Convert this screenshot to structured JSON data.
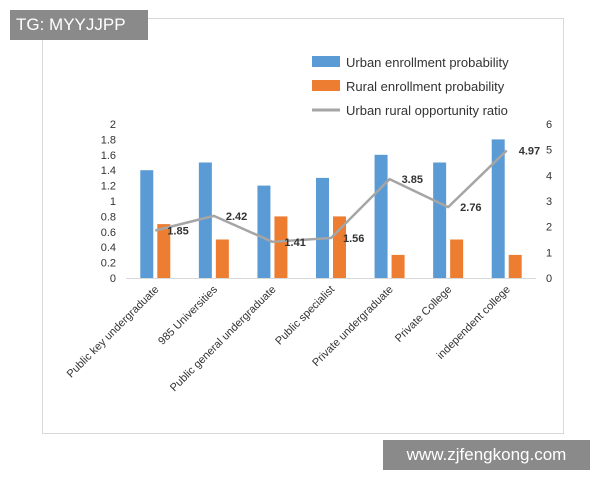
{
  "watermarks": {
    "tag": "TG: MYYJJPP",
    "site": "www.zjfengkong.com"
  },
  "chart_data": {
    "type": "bar",
    "categories": [
      "Public key undergraduate",
      "985 Universities",
      "Public general undergraduate",
      "Public specialist",
      "Private undergraduate",
      "Private College",
      "independent college"
    ],
    "series": [
      {
        "name": "Urban enrollment probability",
        "type": "bar",
        "axis": "left",
        "color": "#5b9bd5",
        "values": [
          1.4,
          1.5,
          1.2,
          1.3,
          1.6,
          1.5,
          1.8
        ]
      },
      {
        "name": "Rural enrollment probability",
        "type": "bar",
        "axis": "left",
        "color": "#ed7d31",
        "values": [
          0.7,
          0.5,
          0.8,
          0.8,
          0.3,
          0.5,
          0.3
        ]
      },
      {
        "name": "Urban rural opportunity ratio",
        "type": "line",
        "axis": "right",
        "color": "#a5a5a5",
        "values": [
          1.85,
          2.42,
          1.41,
          1.56,
          3.85,
          2.76,
          4.97
        ]
      }
    ],
    "data_labels": [
      "1.85",
      "2.42",
      "1.41",
      "1.56",
      "3.85",
      "2.76",
      "4.97"
    ],
    "left_axis": {
      "min": 0,
      "max": 2,
      "ticks": [
        "0",
        "0.2",
        "0.4",
        "0.6",
        "0.8",
        "1",
        "1.2",
        "1.4",
        "1.6",
        "1.8",
        "2"
      ]
    },
    "right_axis": {
      "min": 0,
      "max": 6,
      "ticks": [
        "0",
        "1",
        "2",
        "3",
        "4",
        "5",
        "6"
      ]
    },
    "legend_position": "top-right",
    "grid": false
  }
}
